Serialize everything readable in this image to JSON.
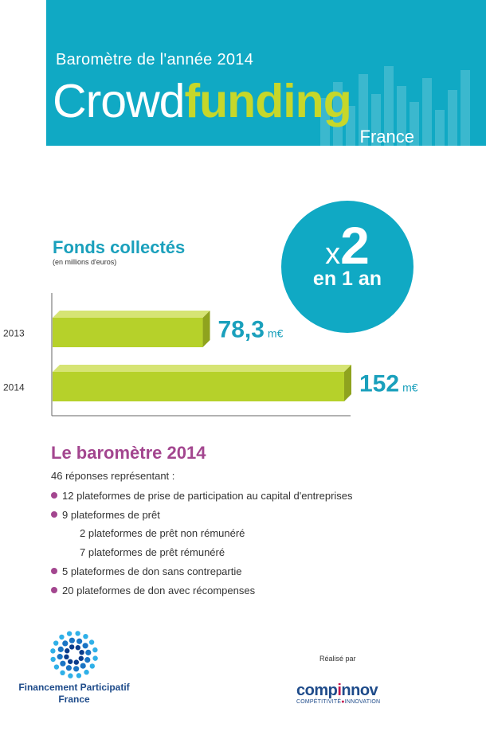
{
  "header": {
    "subtitle": "Baromètre de l'année 2014",
    "brand_light": "Crowd",
    "brand_bold": "funding",
    "country": "France"
  },
  "badge": {
    "x": "x",
    "factor": "2",
    "period": "en 1 an"
  },
  "chart_data": {
    "type": "bar",
    "orientation": "horizontal",
    "title": "Fonds collectés",
    "subtitle": "(en millions d'euros)",
    "categories": [
      "2013",
      "2014"
    ],
    "values": [
      78.3,
      152
    ],
    "value_labels": [
      "78,3",
      "152"
    ],
    "unit": "m€",
    "bar_color": "#b6d12a",
    "label_color": "#1aa0bc",
    "xlim": [
      0,
      152
    ]
  },
  "barometre": {
    "title": "Le baromètre 2014",
    "intro": "46 réponses représentant :",
    "items": [
      {
        "text": "12 plateformes de prise de participation au capital d'entreprises",
        "bullet": true,
        "indent": 0
      },
      {
        "text": "9 plateformes de prêt",
        "bullet": true,
        "indent": 0
      },
      {
        "text": "2 plateformes de prêt non rémunéré",
        "bullet": false,
        "indent": 1
      },
      {
        "text": "7 plateformes de prêt rémunéré",
        "bullet": false,
        "indent": 1
      },
      {
        "text": "5 plateformes de don sans contrepartie",
        "bullet": true,
        "indent": 0
      },
      {
        "text": "20 plateformes de don avec récompenses",
        "bullet": true,
        "indent": 0
      }
    ]
  },
  "footer": {
    "fpf_line1": "Financement Participatif",
    "fpf_line2": "France",
    "realise": "Réalisé par",
    "compi_pre": "comp",
    "compi_mid": "i",
    "compi_post": "nnov",
    "compi_sub_1": "COMPÉTITIVITÉ",
    "compi_sub_2": "INNOVATION"
  },
  "colors": {
    "teal": "#10a9c4",
    "green": "#c6d72a",
    "purple": "#a3468f",
    "navy": "#1e4b8a"
  }
}
